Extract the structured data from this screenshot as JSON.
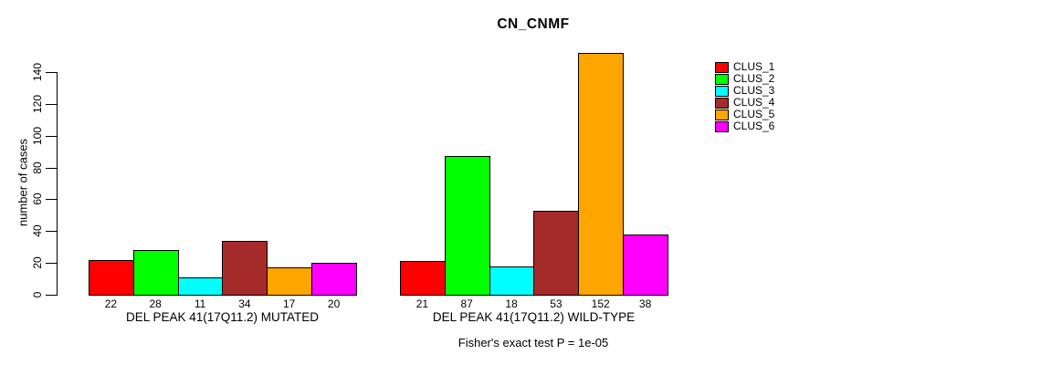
{
  "chart_data": {
    "type": "bar",
    "title": "CN_CNMF",
    "ylabel": "number of cases",
    "xlabel": "",
    "annotation": "Fisher's exact test P = 1e-05",
    "yticks": [
      0,
      20,
      40,
      60,
      80,
      100,
      120,
      140
    ],
    "ylim": [
      0,
      152
    ],
    "grid": false,
    "legend_position": "right",
    "legend": [
      {
        "label": "CLUS_1",
        "color": "#FF0000"
      },
      {
        "label": "CLUS_2",
        "color": "#00FF00"
      },
      {
        "label": "CLUS_3",
        "color": "#00FFFF"
      },
      {
        "label": "CLUS_4",
        "color": "#A52A2A"
      },
      {
        "label": "CLUS_5",
        "color": "#FFA500"
      },
      {
        "label": "CLUS_6",
        "color": "#FF00FF"
      }
    ],
    "bar_colors": [
      "#FF0000",
      "#00FF00",
      "#00FFFF",
      "#A52A2A",
      "#FFA500",
      "#FF00FF"
    ],
    "groups": [
      {
        "label": "DEL PEAK 41(17Q11.2) MUTATED",
        "values": [
          22,
          28,
          11,
          34,
          17,
          20
        ]
      },
      {
        "label": "DEL PEAK 41(17Q11.2) WILD-TYPE",
        "values": [
          21,
          87,
          18,
          53,
          152,
          38
        ]
      }
    ],
    "axis_color": "#000000",
    "background_color": "#FFFFFF"
  }
}
